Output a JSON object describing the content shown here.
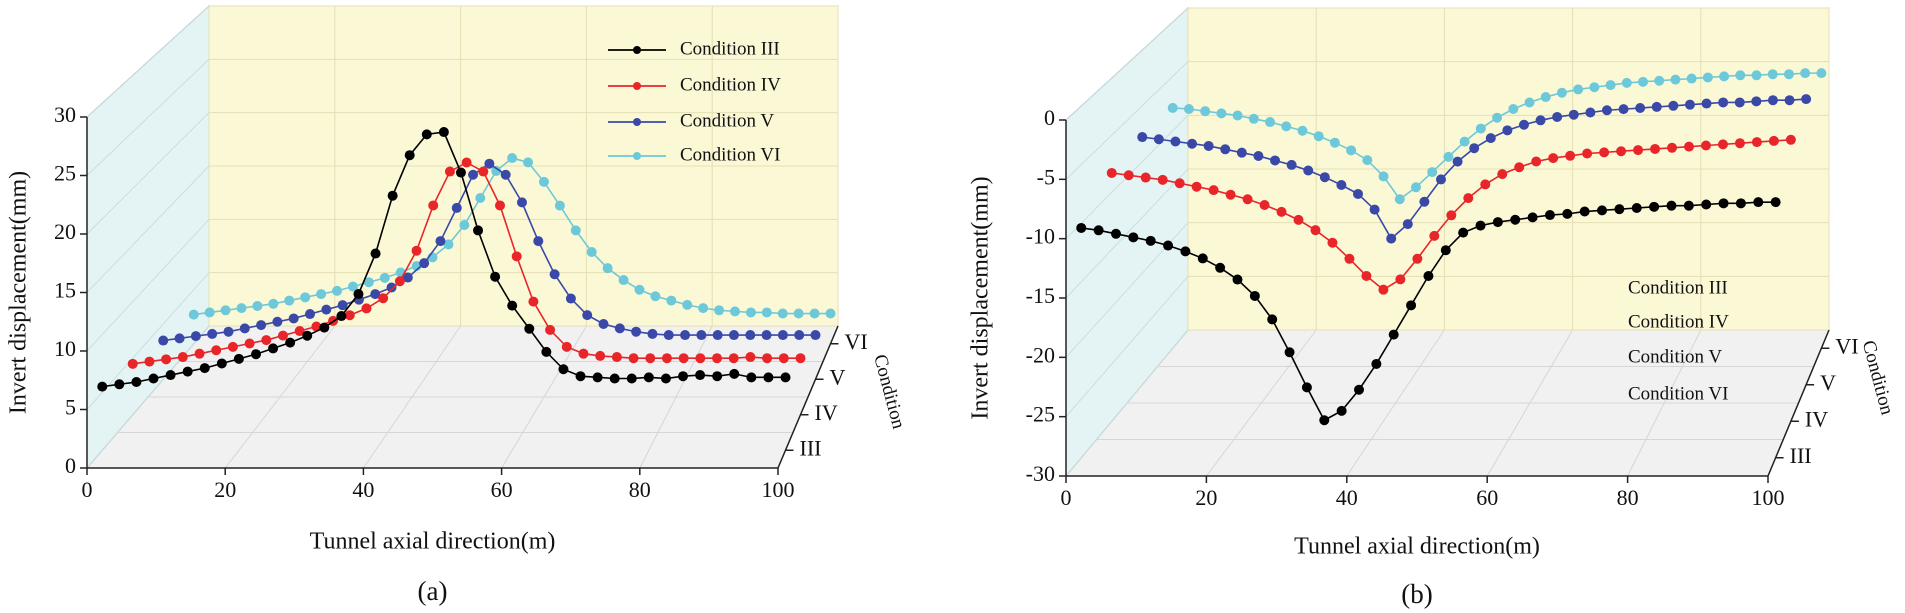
{
  "chart_data": [
    {
      "type": "line",
      "caption": "(a)",
      "xlabel": "Tunnel axial direction(m)",
      "ylabel": "Invert displacement(mm)",
      "zlabel": "Condition",
      "zcategories": [
        "III",
        "IV",
        "V",
        "VI"
      ],
      "xlim": [
        0,
        100
      ],
      "xticks": [
        0,
        20,
        40,
        60,
        80,
        100
      ],
      "ylim": [
        0,
        30
      ],
      "yticks": [
        0,
        5,
        10,
        15,
        20,
        25,
        30
      ],
      "grid": true,
      "legend": "upper right",
      "legend_markers": true,
      "x": [
        0,
        2.5,
        5,
        7.5,
        10,
        12.5,
        15,
        17.5,
        20,
        22.5,
        25,
        27.5,
        30,
        32.5,
        35,
        37.5,
        40,
        42.5,
        45,
        47.5,
        50,
        52.5,
        55,
        57.5,
        60,
        62.5,
        65,
        67.5,
        70,
        72.5,
        75,
        77.5,
        80,
        82.5,
        85,
        87.5,
        90,
        92.5,
        95,
        97.5,
        100
      ],
      "series": [
        {
          "name": "Condition III",
          "color": "#000000",
          "values": [
            5.5,
            5.7,
            5.9,
            6.2,
            6.5,
            6.8,
            7.1,
            7.5,
            7.9,
            8.3,
            8.8,
            9.3,
            9.9,
            10.6,
            11.6,
            13.5,
            17,
            22,
            25.5,
            27.3,
            27.5,
            24,
            19,
            15,
            12.5,
            10.5,
            8.5,
            7,
            6.4,
            6.3,
            6.2,
            6.2,
            6.3,
            6.2,
            6.4,
            6.5,
            6.4,
            6.6,
            6.3,
            6.3,
            6.3
          ]
        },
        {
          "name": "Condition IV",
          "color": "#e8262a",
          "values": [
            4.5,
            4.7,
            4.9,
            5.1,
            5.4,
            5.7,
            6,
            6.3,
            6.6,
            7,
            7.4,
            7.8,
            8.3,
            8.8,
            9.4,
            10.3,
            11.8,
            14.5,
            18.5,
            21.5,
            22.3,
            21.5,
            18.5,
            14,
            10,
            7.5,
            6,
            5.4,
            5.2,
            5.1,
            5,
            5,
            5,
            5,
            5,
            5,
            5,
            5.1,
            5,
            5,
            5
          ]
        },
        {
          "name": "Condition V",
          "color": "#3a49a8",
          "values": [
            3.5,
            3.7,
            3.9,
            4.1,
            4.3,
            4.6,
            4.9,
            5.2,
            5.5,
            5.9,
            6.3,
            6.7,
            7.2,
            7.7,
            8.3,
            9.2,
            10.5,
            12.5,
            15.5,
            18.5,
            19.5,
            18.5,
            16,
            12.5,
            9.5,
            7.3,
            5.8,
            5,
            4.6,
            4.3,
            4.1,
            4,
            4,
            4,
            4,
            4,
            4,
            4,
            4,
            4,
            4
          ]
        },
        {
          "name": "Condition VI",
          "color": "#6dc9d9",
          "values": [
            2.7,
            2.9,
            3.1,
            3.3,
            3.5,
            3.7,
            4,
            4.3,
            4.6,
            4.9,
            5.3,
            5.7,
            6.1,
            6.6,
            7.2,
            8,
            9.2,
            11,
            13.5,
            16,
            17.2,
            16.8,
            15,
            12.8,
            10.5,
            8.5,
            7,
            5.9,
            5,
            4.4,
            4,
            3.6,
            3.3,
            3.1,
            3,
            2.9,
            2.9,
            2.8,
            2.8,
            2.8,
            2.8
          ]
        }
      ]
    },
    {
      "type": "line",
      "caption": "(b)",
      "xlabel": "Tunnel axial direction(m)",
      "ylabel": "Invert displacement(mm)",
      "zlabel": "Condition",
      "zcategories": [
        "III",
        "IV",
        "V",
        "VI"
      ],
      "xlim": [
        0,
        100
      ],
      "xticks": [
        0,
        20,
        40,
        60,
        80,
        100
      ],
      "ylim": [
        -30,
        0
      ],
      "yticks": [
        -30,
        -25,
        -20,
        -15,
        -10,
        -5,
        0
      ],
      "grid": true,
      "legend": "lower right",
      "legend_markers": false,
      "x": [
        0,
        2.5,
        5,
        7.5,
        10,
        12.5,
        15,
        17.5,
        20,
        22.5,
        25,
        27.5,
        30,
        32.5,
        35,
        37.5,
        40,
        42.5,
        45,
        47.5,
        50,
        52.5,
        55,
        57.5,
        60,
        62.5,
        65,
        67.5,
        70,
        72.5,
        75,
        77.5,
        80,
        82.5,
        85,
        87.5,
        90,
        92.5,
        95,
        97.5,
        100
      ],
      "series": [
        {
          "name": "Condition III",
          "color": "#000000",
          "values": [
            -10.4,
            -10.6,
            -10.9,
            -11.2,
            -11.5,
            -11.9,
            -12.4,
            -13,
            -13.8,
            -14.8,
            -16.2,
            -18.2,
            -21,
            -24,
            -26.8,
            -26,
            -24.2,
            -22,
            -19.5,
            -17,
            -14.5,
            -12.3,
            -10.8,
            -10.2,
            -9.9,
            -9.7,
            -9.5,
            -9.3,
            -9.2,
            -9,
            -8.9,
            -8.8,
            -8.7,
            -8.6,
            -8.5,
            -8.5,
            -8.4,
            -8.3,
            -8.3,
            -8.2,
            -8.2
          ]
        },
        {
          "name": "Condition IV",
          "color": "#e8262a",
          "values": [
            -8.3,
            -8.5,
            -8.7,
            -8.9,
            -9.2,
            -9.5,
            -9.8,
            -10.2,
            -10.6,
            -11.1,
            -11.7,
            -12.4,
            -13.3,
            -14.4,
            -15.8,
            -17.3,
            -18.5,
            -17.6,
            -15.8,
            -13.8,
            -12,
            -10.5,
            -9.3,
            -8.4,
            -7.8,
            -7.3,
            -7,
            -6.8,
            -6.6,
            -6.5,
            -6.4,
            -6.3,
            -6.2,
            -6.1,
            -6,
            -5.9,
            -5.8,
            -5.7,
            -5.6,
            -5.5,
            -5.4
          ]
        },
        {
          "name": "Condition V",
          "color": "#3a49a8",
          "values": [
            -7.8,
            -8,
            -8.2,
            -8.4,
            -8.6,
            -8.9,
            -9.2,
            -9.5,
            -9.9,
            -10.3,
            -10.8,
            -11.4,
            -12.1,
            -12.9,
            -14.3,
            -16.9,
            -15.6,
            -13.6,
            -11.6,
            -10,
            -8.8,
            -7.9,
            -7.2,
            -6.7,
            -6.3,
            -6,
            -5.8,
            -5.6,
            -5.4,
            -5.3,
            -5.2,
            -5.1,
            -5,
            -4.9,
            -4.8,
            -4.7,
            -4.7,
            -4.6,
            -4.5,
            -4.5,
            -4.4
          ]
        },
        {
          "name": "Condition VI",
          "color": "#6dc9d9",
          "values": [
            -7.9,
            -8,
            -8.2,
            -8.4,
            -8.6,
            -8.9,
            -9.2,
            -9.6,
            -10,
            -10.5,
            -11.1,
            -11.8,
            -12.7,
            -14.2,
            -16.3,
            -15.2,
            -13.8,
            -12.4,
            -11,
            -9.8,
            -8.8,
            -8,
            -7.4,
            -6.9,
            -6.5,
            -6.2,
            -6,
            -5.8,
            -5.6,
            -5.5,
            -5.4,
            -5.3,
            -5.2,
            -5.1,
            -5,
            -4.9,
            -4.9,
            -4.8,
            -4.8,
            -4.7,
            -4.7
          ]
        }
      ]
    }
  ]
}
